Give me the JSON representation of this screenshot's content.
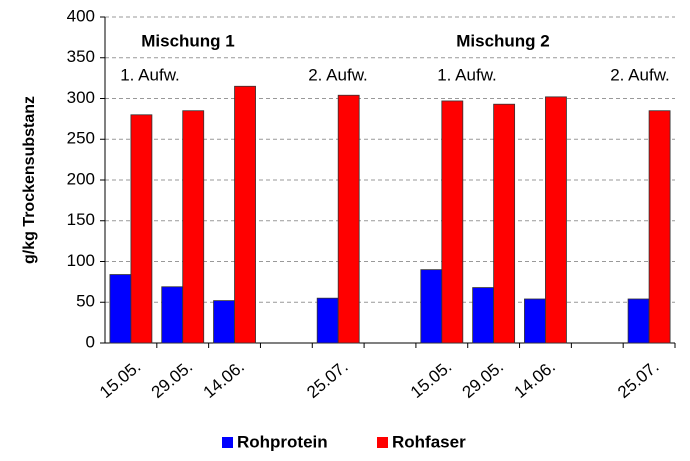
{
  "chart_data": {
    "type": "bar",
    "y_label": "g/kg Trockensubstanz",
    "categories": [
      "15.05.",
      "29.05.",
      "14.06.",
      null,
      "25.07.",
      null,
      "15.05.",
      "29.05.",
      "14.06.",
      null,
      "25.07."
    ],
    "series": [
      {
        "name": "Rohprotein",
        "color": "#0000ff",
        "values": [
          84,
          69,
          52,
          null,
          55,
          null,
          90,
          68,
          54,
          null,
          54
        ]
      },
      {
        "name": "Rohfaser",
        "color": "#ff0000",
        "values": [
          280,
          285,
          315,
          null,
          304,
          null,
          297,
          293,
          302,
          null,
          285
        ]
      }
    ],
    "annotations": [
      "Mischung 1",
      "Mischung 2",
      "1. Aufw.",
      "2. Aufw.",
      "1. Aufw.",
      "2. Aufw."
    ],
    "ylim": [
      0,
      400
    ],
    "yticks": [
      0,
      50,
      100,
      150,
      200,
      250,
      300,
      350,
      400
    ],
    "grid": true,
    "legend": "bottom"
  }
}
